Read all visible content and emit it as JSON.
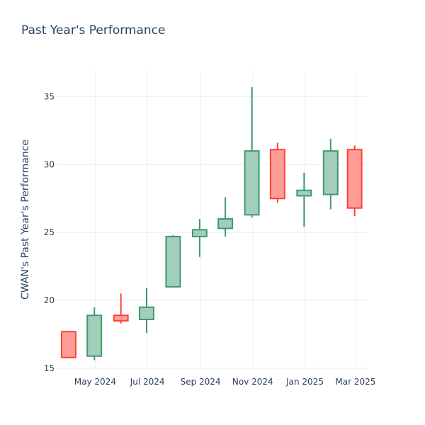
{
  "chart_data": {
    "type": "candlestick",
    "title": "Past Year's Performance",
    "xlabel": "",
    "ylabel": "CWAN's Past Year's Performance",
    "ylim": [
      15,
      36.9
    ],
    "y_ticks": [
      15,
      20,
      25,
      30,
      35
    ],
    "x_ticks": [
      {
        "date": "2024-05-01",
        "label": "May 2024"
      },
      {
        "date": "2024-07-01",
        "label": "Jul 2024"
      },
      {
        "date": "2024-09-01",
        "label": "Sep 2024"
      },
      {
        "date": "2024-11-01",
        "label": "Nov 2024"
      },
      {
        "date": "2025-01-01",
        "label": "Jan 2025"
      },
      {
        "date": "2025-03-01",
        "label": "Mar 2025"
      }
    ],
    "candles": [
      {
        "date": "2024-03-31",
        "open": 17.7,
        "high": 17.7,
        "low": 15.8,
        "close": 15.8
      },
      {
        "date": "2024-04-30",
        "open": 15.9,
        "high": 19.5,
        "low": 15.6,
        "close": 18.9
      },
      {
        "date": "2024-05-31",
        "open": 18.9,
        "high": 20.5,
        "low": 18.3,
        "close": 18.5
      },
      {
        "date": "2024-06-30",
        "open": 18.6,
        "high": 20.9,
        "low": 17.6,
        "close": 19.5
      },
      {
        "date": "2024-07-31",
        "open": 21.0,
        "high": 24.8,
        "low": 21.0,
        "close": 24.7
      },
      {
        "date": "2024-08-31",
        "open": 24.7,
        "high": 26.0,
        "low": 23.2,
        "close": 25.2
      },
      {
        "date": "2024-09-30",
        "open": 25.3,
        "high": 27.6,
        "low": 24.7,
        "close": 26.0
      },
      {
        "date": "2024-10-31",
        "open": 26.3,
        "high": 35.7,
        "low": 26.1,
        "close": 31.0
      },
      {
        "date": "2024-11-30",
        "open": 31.1,
        "high": 31.6,
        "low": 27.2,
        "close": 27.5
      },
      {
        "date": "2024-12-31",
        "open": 27.7,
        "high": 29.4,
        "low": 25.4,
        "close": 28.1
      },
      {
        "date": "2025-01-31",
        "open": 27.8,
        "high": 31.9,
        "low": 26.7,
        "close": 31.0
      },
      {
        "date": "2025-02-28",
        "open": 31.1,
        "high": 31.4,
        "low": 26.2,
        "close": 26.8
      }
    ],
    "grid": true,
    "legend": "none",
    "colors": {
      "increasing_fill": "#a3cfba",
      "increasing_line": "#3d9970",
      "decreasing_fill": "#ff9e99",
      "decreasing_line": "#ff4136"
    }
  }
}
